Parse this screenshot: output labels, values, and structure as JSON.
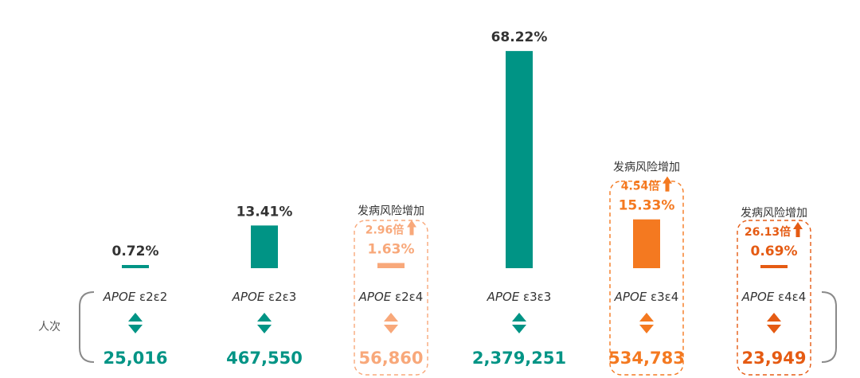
{
  "chart_data": {
    "type": "bar",
    "side_label": "人次",
    "colors": {
      "teal": "#009485",
      "light_orange": "#F8A87A",
      "orange": "#F47920",
      "deep_orange": "#E55B13"
    },
    "categories": [
      {
        "genotype_prefix": "APOE",
        "genotype_suffix": "ε2ε2",
        "percent": 0.72,
        "percent_label": "0.72%",
        "count": "25,016",
        "color": "teal",
        "highlight": false
      },
      {
        "genotype_prefix": "APOE",
        "genotype_suffix": "ε2ε3",
        "percent": 13.41,
        "percent_label": "13.41%",
        "count": "467,550",
        "color": "teal",
        "highlight": false
      },
      {
        "genotype_prefix": "APOE",
        "genotype_suffix": "ε2ε4",
        "percent": 1.63,
        "percent_label": "1.63%",
        "count": "56,860",
        "color": "light_orange",
        "highlight": true,
        "risk_label": "发病风险增加",
        "risk_fold": "2.96倍"
      },
      {
        "genotype_prefix": "APOE",
        "genotype_suffix": "ε3ε3",
        "percent": 68.22,
        "percent_label": "68.22%",
        "count": "2,379,251",
        "color": "teal",
        "highlight": false
      },
      {
        "genotype_prefix": "APOE",
        "genotype_suffix": "ε3ε4",
        "percent": 15.33,
        "percent_label": "15.33%",
        "count": "534,783",
        "color": "orange",
        "highlight": true,
        "risk_label": "发病风险增加",
        "risk_fold": "4.54倍"
      },
      {
        "genotype_prefix": "APOE",
        "genotype_suffix": "ε4ε4",
        "percent": 0.69,
        "percent_label": "0.69%",
        "count": "23,949",
        "color": "deep_orange",
        "highlight": true,
        "risk_label": "发病风险增加",
        "risk_fold": "26.13倍"
      }
    ]
  }
}
